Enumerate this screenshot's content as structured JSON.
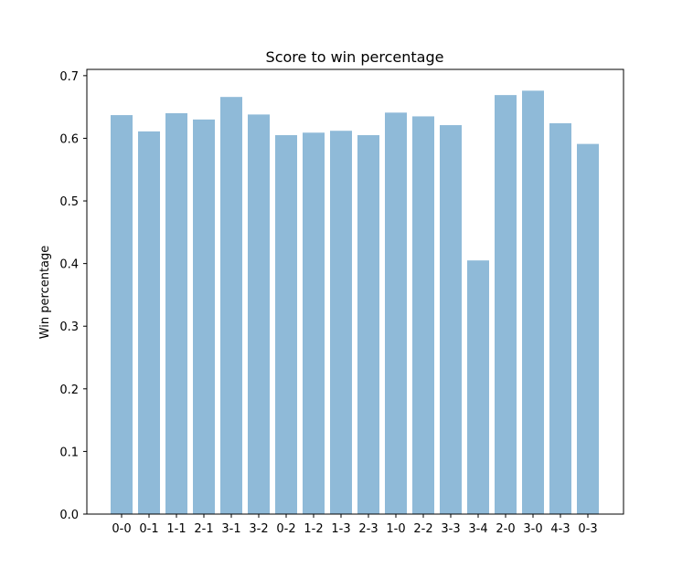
{
  "chart_data": {
    "type": "bar",
    "title": "Score to win percentage",
    "xlabel": "",
    "ylabel": "Win percentage",
    "categories": [
      "0-0",
      "0-1",
      "1-1",
      "2-1",
      "3-1",
      "3-2",
      "0-2",
      "1-2",
      "1-3",
      "2-3",
      "1-0",
      "2-2",
      "3-3",
      "3-4",
      "2-0",
      "3-0",
      "4-3",
      "0-3"
    ],
    "values": [
      0.637,
      0.611,
      0.64,
      0.63,
      0.666,
      0.638,
      0.605,
      0.609,
      0.612,
      0.605,
      0.641,
      0.635,
      0.621,
      0.405,
      0.669,
      0.676,
      0.624,
      0.591
    ],
    "ylim": [
      0,
      0.71
    ],
    "yticks": [
      0.0,
      0.1,
      0.2,
      0.3,
      0.4,
      0.5,
      0.6,
      0.7
    ],
    "ytick_labels": [
      "0.0",
      "0.1",
      "0.2",
      "0.3",
      "0.4",
      "0.5",
      "0.6",
      "0.7"
    ],
    "grid": false,
    "bar_color": "#8fbad8"
  }
}
